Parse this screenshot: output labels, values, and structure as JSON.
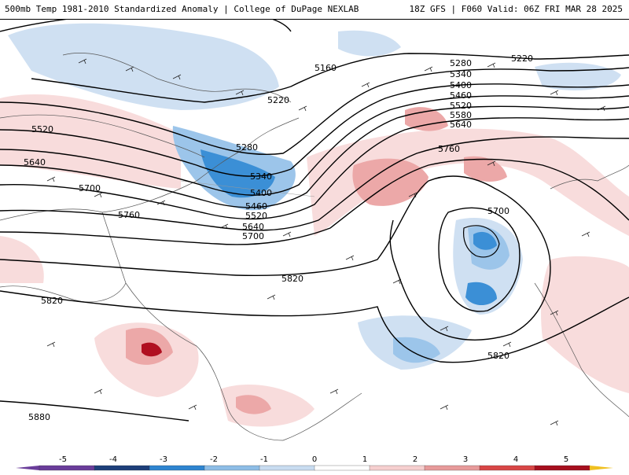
{
  "header": {
    "title": "500mb Temp 1981-2010 Standardized Anomaly | College of DuPage NEXLAB",
    "run_info": "18Z GFS | F060 Valid: 06Z FRI MAR 28 2025"
  },
  "height_contour_labels": [
    "5160",
    "5220",
    "5280",
    "5340",
    "5400",
    "5460",
    "5520",
    "5580",
    "5640",
    "5700",
    "5760",
    "5820",
    "5880"
  ],
  "legend": {
    "tick_labels": [
      "-5",
      "-4",
      "-3",
      "-2",
      "-1",
      "0",
      "1",
      "2",
      "3",
      "4",
      "5"
    ],
    "colors": [
      "#6a3d9a",
      "#1d3f7a",
      "#2e84d0",
      "#8dbde6",
      "#c8dcf0",
      "#ffffff",
      "#f6cfcf",
      "#e79a9a",
      "#d84646",
      "#a60f1e",
      "#f0c020"
    ]
  },
  "anomaly_colors": {
    "weak_cold": "#cfe0f2",
    "mod_cold": "#9cc5ea",
    "strong_cold": "#3b8fd6",
    "weak_warm": "#f8dcdc",
    "mod_warm": "#eca8a8",
    "strong_warm": "#d44b4b",
    "extreme_warm": "#b00f20"
  }
}
